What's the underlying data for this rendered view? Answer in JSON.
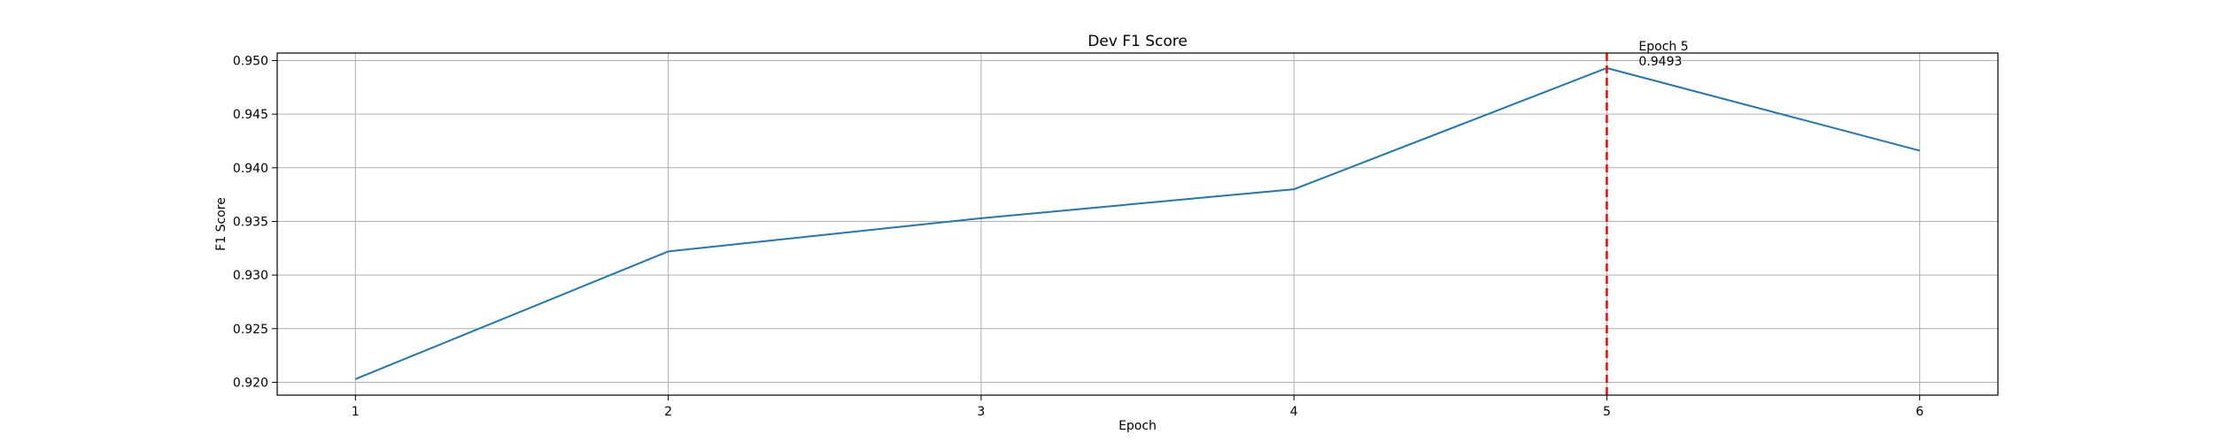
{
  "chart_data": {
    "type": "line",
    "title": "Dev F1 Score",
    "xlabel": "Epoch",
    "ylabel": "F1 Score",
    "x": [
      1,
      2,
      3,
      4,
      5,
      6
    ],
    "series": [
      {
        "values": [
          0.9203,
          0.9322,
          0.9353,
          0.938,
          0.9493,
          0.9416
        ],
        "color": "#1f77b4"
      }
    ],
    "xlim": [
      0.75,
      6.25
    ],
    "ylim": [
      0.9188,
      0.9507
    ],
    "xticks": [
      1,
      2,
      3,
      4,
      5,
      6
    ],
    "xtick_labels": [
      "1",
      "2",
      "3",
      "4",
      "5",
      "6"
    ],
    "yticks": [
      0.92,
      0.925,
      0.93,
      0.935,
      0.94,
      0.945,
      0.95
    ],
    "ytick_labels": [
      "0.920",
      "0.925",
      "0.930",
      "0.935",
      "0.940",
      "0.945",
      "0.950"
    ],
    "grid": true,
    "best_marker": {
      "x": 5,
      "color": "#ff0000",
      "style": "dashed",
      "label_line1": "Epoch 5",
      "label_line2": "0.9493"
    }
  }
}
